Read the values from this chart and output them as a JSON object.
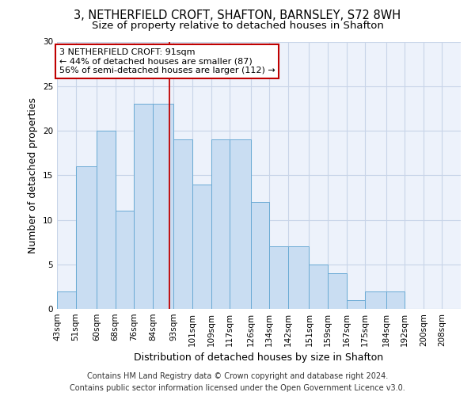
{
  "title1": "3, NETHERFIELD CROFT, SHAFTON, BARNSLEY, S72 8WH",
  "title2": "Size of property relative to detached houses in Shafton",
  "xlabel": "Distribution of detached houses by size in Shafton",
  "ylabel": "Number of detached properties",
  "footer1": "Contains HM Land Registry data © Crown copyright and database right 2024.",
  "footer2": "Contains public sector information licensed under the Open Government Licence v3.0.",
  "annotation_line1": "3 NETHERFIELD CROFT: 91sqm",
  "annotation_line2": "← 44% of detached houses are smaller (87)",
  "annotation_line3": "56% of semi-detached houses are larger (112) →",
  "bar_labels": [
    "43sqm",
    "51sqm",
    "60sqm",
    "68sqm",
    "76sqm",
    "84sqm",
    "93sqm",
    "101sqm",
    "109sqm",
    "117sqm",
    "126sqm",
    "134sqm",
    "142sqm",
    "151sqm",
    "159sqm",
    "167sqm",
    "175sqm",
    "184sqm",
    "192sqm",
    "200sqm",
    "208sqm"
  ],
  "bar_edges": [
    43,
    51,
    60,
    68,
    76,
    84,
    93,
    101,
    109,
    117,
    126,
    134,
    142,
    151,
    159,
    167,
    175,
    184,
    192,
    200,
    208
  ],
  "bar_heights": [
    2,
    16,
    20,
    11,
    23,
    23,
    19,
    14,
    19,
    19,
    12,
    7,
    7,
    5,
    4,
    1,
    2,
    2,
    0,
    0,
    0
  ],
  "bar_color": "#c9ddf2",
  "bar_edge_color": "#6aaad4",
  "vline_x": 91,
  "vline_color": "#c00000",
  "ylim": [
    0,
    30
  ],
  "yticks": [
    0,
    5,
    10,
    15,
    20,
    25,
    30
  ],
  "grid_color": "#c8d4e8",
  "bg_color": "#edf2fb",
  "annotation_box_color": "#c00000",
  "title_fontsize": 10.5,
  "subtitle_fontsize": 9.5,
  "ylabel_fontsize": 9,
  "xlabel_fontsize": 9,
  "tick_fontsize": 7.5,
  "annot_fontsize": 8,
  "footer_fontsize": 7
}
